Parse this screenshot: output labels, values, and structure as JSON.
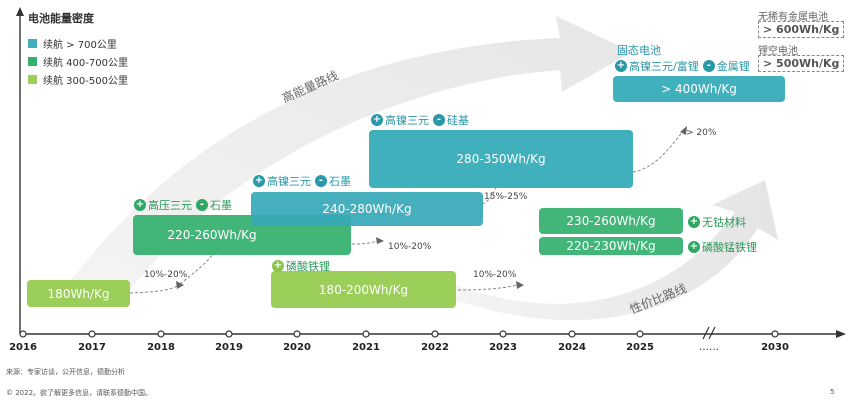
{
  "title": "电池能量密度",
  "legend": [
    {
      "label": "续航 > 700公里",
      "color": "#40b0bd"
    },
    {
      "label": "续航 400-700公里",
      "color": "#32b06e"
    },
    {
      "label": "续航 300-500公里",
      "color": "#9bcf5a"
    }
  ],
  "years": [
    "2016",
    "2017",
    "2018",
    "2019",
    "2020",
    "2021",
    "2022",
    "2023",
    "2024",
    "2025",
    "……",
    "2030"
  ],
  "routes": {
    "high_energy": "高能量路线",
    "cost_performance": "性价比路线"
  },
  "boxes": [
    {
      "label": "180Wh/Kg"
    },
    {
      "label": "220-260Wh/Kg"
    },
    {
      "label": "240-280Wh/Kg"
    },
    {
      "label": "180-200Wh/Kg"
    },
    {
      "label": "280-350Wh/Kg"
    },
    {
      "label": "230-260Wh/Kg"
    },
    {
      "label": "220-230Wh/Kg"
    },
    {
      "label": "> 400Wh/Kg"
    }
  ],
  "tags": {
    "high_voltage": {
      "plus": "高压三元",
      "minus": "石墨"
    },
    "high_nickel_graphite": {
      "plus": "高镍三元",
      "minus": "石墨"
    },
    "lfp": {
      "plus": "磷酸铁锂"
    },
    "high_nickel_silicon": {
      "plus": "高镍三元",
      "minus": "硅基"
    },
    "cobalt_free": {
      "plus": "无钴材料"
    },
    "lmfp": {
      "plus": "磷酸锰铁锂"
    },
    "solid_state": {
      "title": "固态电池",
      "plus": "高镍三元/富锂",
      "minus": "金属锂"
    }
  },
  "signs": {
    "plus": "+",
    "minus": "-"
  },
  "percentages": [
    "10%-20%",
    "10%-20%",
    "15%-25%",
    "10%-20%",
    "> 20%"
  ],
  "future": [
    {
      "label": "无稀有金属电池",
      "value": "> 600Wh/Kg"
    },
    {
      "label": "锂空电池",
      "value": "> 500Wh/Kg"
    }
  ],
  "footer": {
    "source": "来源：专家访谈，公开信息，德勤分析",
    "copyright": "© 2022。欲了解更多信息，请联系德勤中国。",
    "page": "5"
  }
}
